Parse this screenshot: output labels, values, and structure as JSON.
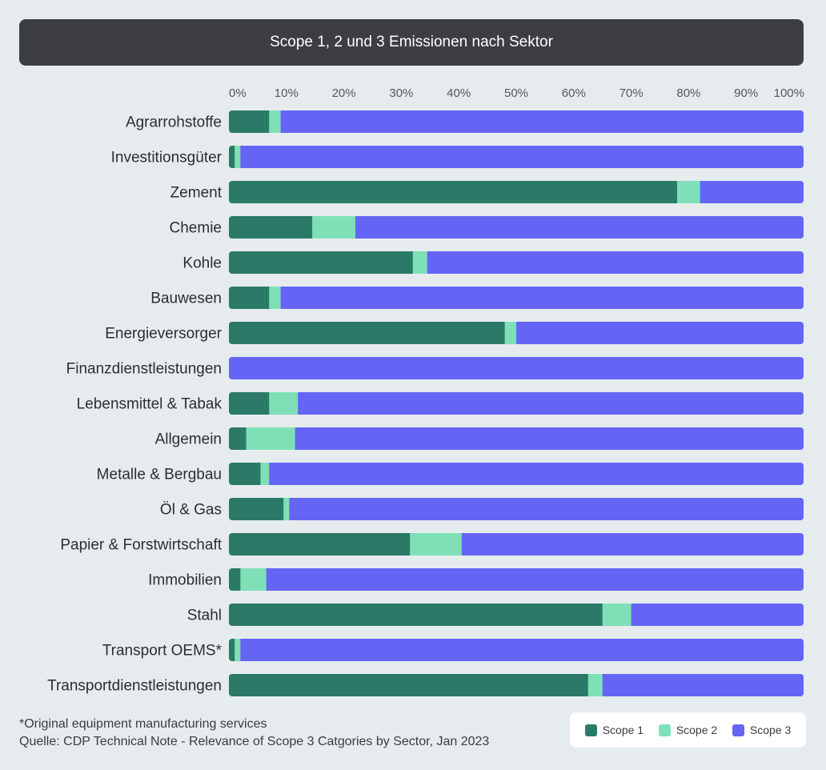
{
  "header": {
    "title": "Scope 1, 2 und 3 Emissionen nach Sektor"
  },
  "colors": {
    "scope1": "#2b7a67",
    "scope2": "#7fe0b8",
    "scope3": "#6565f5"
  },
  "chart_data": {
    "type": "bar",
    "orientation": "horizontal",
    "stacked": true,
    "title": "Scope 1, 2 und 3 Emissionen nach Sektor",
    "xlim": [
      0,
      100
    ],
    "x_ticks": [
      "0%",
      "10%",
      "20%",
      "30%",
      "40%",
      "50%",
      "60%",
      "70%",
      "80%",
      "90%",
      "100%"
    ],
    "categories": [
      "Agrarrohstoffe",
      "Investitionsgüter",
      "Zement",
      "Chemie",
      "Kohle",
      "Bauwesen",
      "Energieversorger",
      "Finanzdienstleistungen",
      "Lebensmittel & Tabak",
      "Allgemein",
      "Metalle & Bergbau",
      "Öl & Gas",
      "Papier & Forstwirtschaft",
      "Immobilien",
      "Stahl",
      "Transport OEMS*",
      "Transportdienstleistungen"
    ],
    "series": [
      {
        "name": "Scope 1",
        "values": [
          7,
          1,
          78,
          14.5,
          32,
          7,
          48,
          0,
          7,
          3,
          5.5,
          9.5,
          31.5,
          2,
          65,
          1,
          62.5
        ]
      },
      {
        "name": "Scope 2",
        "values": [
          2,
          1,
          4,
          7.5,
          2.5,
          2,
          2,
          0,
          5,
          8.5,
          1.5,
          1,
          9,
          4.5,
          5,
          1,
          2.5
        ]
      },
      {
        "name": "Scope 3",
        "values": [
          91,
          98,
          18,
          78,
          65.5,
          91,
          50,
          100,
          88,
          88.5,
          93,
          89.5,
          59.5,
          93.5,
          30,
          98,
          35
        ]
      }
    ],
    "legend_position": "bottom-right",
    "grid": false
  },
  "footnote": {
    "note": "*Original equipment manufacturing services",
    "source": "Quelle: CDP Technical Note - Relevance of Scope 3 Catgories by Sector, Jan 2023"
  },
  "legend": {
    "items": [
      "Scope 1",
      "Scope 2",
      "Scope 3"
    ]
  }
}
